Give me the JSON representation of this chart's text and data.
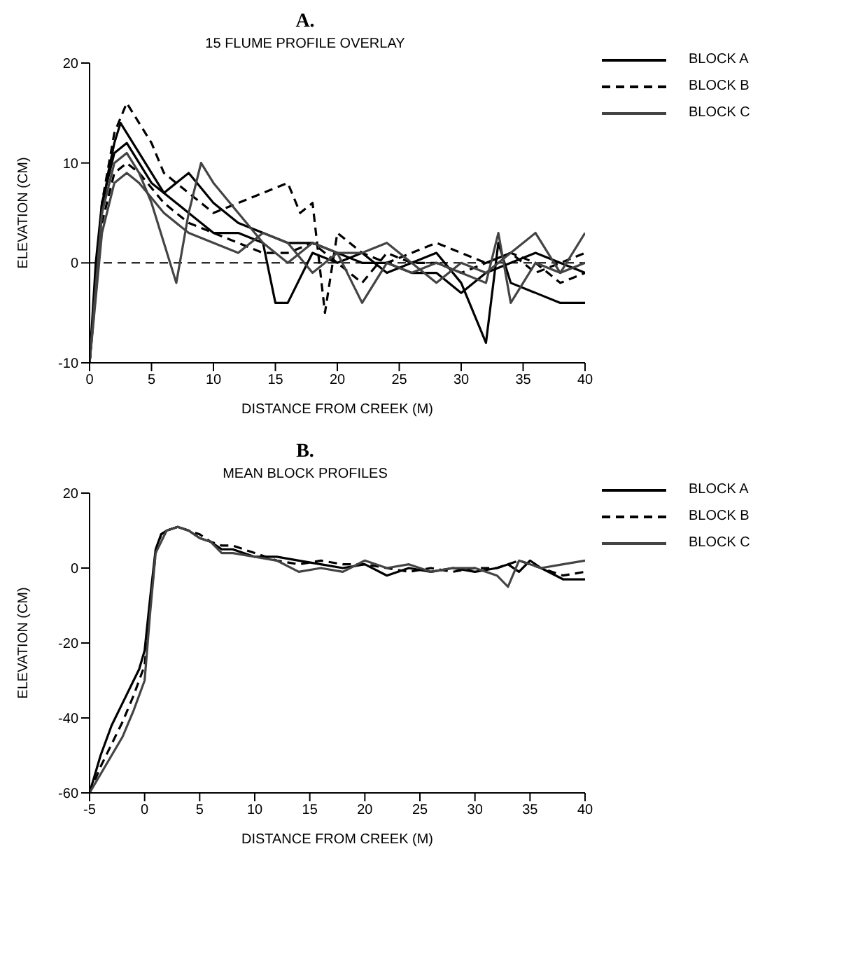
{
  "chart_data": [
    {
      "type": "line",
      "title": "A.",
      "subtitle": "15 FLUME PROFILE OVERLAY",
      "xlabel": "DISTANCE FROM CREEK (M)",
      "ylabel": "ELEVATION (CM)",
      "xlim": [
        0,
        40
      ],
      "xticks": [
        0,
        5,
        10,
        15,
        20,
        25,
        30,
        35,
        40
      ],
      "ylim": [
        -10,
        20
      ],
      "yticks": [
        -10,
        0,
        10,
        20
      ],
      "grid": false,
      "legend": "right",
      "marker": "none",
      "ref_lines": [
        {
          "axis": "y",
          "value": 0,
          "line_style": "dashed",
          "color": "#000000"
        }
      ],
      "series": [
        {
          "name": "BLOCK A",
          "color": "#000000",
          "line_style": "solid",
          "x": [
            0,
            0.5,
            1,
            1.5,
            2,
            2.5,
            3,
            4,
            5,
            6,
            7,
            8,
            9,
            10,
            12,
            14,
            15,
            16,
            18,
            20,
            22,
            24,
            26,
            28,
            30,
            32,
            33,
            34,
            36,
            38,
            40
          ],
          "values": [
            -10,
            -2,
            5,
            9,
            12,
            14,
            13,
            11,
            9,
            7,
            6,
            5,
            4,
            3,
            3,
            2,
            -4,
            -4,
            1,
            0,
            1,
            -1,
            0,
            1,
            -2,
            -8,
            2,
            -2,
            -3,
            -4,
            -4
          ]
        },
        {
          "color": "#000000",
          "line_style": "solid",
          "x": [
            0,
            0.5,
            1,
            2,
            3,
            4,
            5,
            6,
            8,
            10,
            12,
            14,
            16,
            18,
            20,
            22,
            24,
            26,
            28,
            30,
            32,
            34,
            36,
            38,
            40
          ],
          "values": [
            -10,
            0,
            6,
            11,
            12,
            10,
            8,
            7,
            9,
            6,
            4,
            3,
            2,
            2,
            1,
            0,
            0,
            -1,
            -1,
            -3,
            -1,
            0,
            1,
            0,
            -1
          ]
        },
        {
          "name": "BLOCK B",
          "color": "#000000",
          "line_style": "dashed",
          "x": [
            0,
            1,
            2,
            3,
            4,
            5,
            6,
            7,
            8,
            10,
            12,
            14,
            16,
            17,
            18,
            19,
            20,
            22,
            24,
            26,
            28,
            30,
            32,
            34,
            36,
            38,
            40
          ],
          "values": [
            -10,
            6,
            13,
            16,
            14,
            12,
            9,
            8,
            7,
            5,
            6,
            7,
            8,
            5,
            6,
            -5,
            3,
            1,
            0,
            1,
            2,
            1,
            0,
            1,
            -1,
            0,
            1
          ]
        },
        {
          "color": "#000000",
          "line_style": "dashed",
          "x": [
            0,
            1,
            2,
            3,
            4,
            6,
            8,
            10,
            12,
            14,
            16,
            18,
            20,
            22,
            24,
            26,
            28,
            30,
            32,
            34,
            36,
            38,
            40
          ],
          "values": [
            -10,
            4,
            9,
            10,
            9,
            6,
            4,
            3,
            2,
            1,
            1,
            2,
            0,
            -2,
            1,
            0,
            0,
            -1,
            0,
            1,
            0,
            -2,
            -1
          ]
        },
        {
          "name": "BLOCK C",
          "color": "#444444",
          "line_style": "solid",
          "x": [
            0,
            1,
            2,
            3,
            4,
            5,
            6,
            7,
            8,
            9,
            10,
            12,
            14,
            16,
            18,
            20,
            22,
            24,
            26,
            28,
            30,
            32,
            33,
            34,
            36,
            38,
            40
          ],
          "values": [
            -10,
            5,
            10,
            11,
            9,
            6,
            2,
            -2,
            5,
            10,
            8,
            5,
            2,
            0,
            2,
            1,
            -4,
            0,
            -1,
            0,
            -1,
            -2,
            3,
            -4,
            0,
            -1,
            3
          ]
        },
        {
          "color": "#444444",
          "line_style": "solid",
          "x": [
            0,
            1,
            2,
            3,
            4,
            6,
            8,
            10,
            12,
            14,
            16,
            18,
            20,
            22,
            24,
            26,
            28,
            30,
            32,
            34,
            36,
            38,
            40
          ],
          "values": [
            -10,
            3,
            8,
            9,
            8,
            5,
            3,
            2,
            1,
            3,
            2,
            -1,
            1,
            1,
            2,
            0,
            -2,
            0,
            -1,
            1,
            3,
            -1,
            0
          ]
        }
      ]
    },
    {
      "type": "line",
      "title": "B.",
      "subtitle": "MEAN BLOCK PROFILES",
      "xlabel": "DISTANCE FROM CREEK (M)",
      "ylabel": "ELEVATION (CM)",
      "xlim": [
        -5,
        40
      ],
      "xticks": [
        -5,
        0,
        5,
        10,
        15,
        20,
        25,
        30,
        35,
        40
      ],
      "ylim": [
        -60,
        20
      ],
      "yticks": [
        -60,
        -40,
        -20,
        0,
        20
      ],
      "grid": false,
      "legend": "right",
      "marker": "none",
      "series": [
        {
          "name": "BLOCK A",
          "color": "#000000",
          "line_style": "solid",
          "x": [
            -5,
            -4,
            -3,
            -2,
            -1,
            -0.5,
            0,
            0.5,
            1,
            1.5,
            2,
            3,
            4,
            5,
            6,
            7,
            8,
            10,
            12,
            14,
            16,
            18,
            20,
            22,
            24,
            26,
            28,
            30,
            32,
            33,
            34,
            35,
            36,
            38,
            40
          ],
          "values": [
            -60,
            -50,
            -42,
            -36,
            -30,
            -27,
            -22,
            -8,
            5,
            9,
            10,
            11,
            10,
            8,
            7,
            5,
            5,
            3,
            3,
            2,
            1,
            0,
            1,
            -2,
            0,
            -1,
            0,
            -1,
            0,
            1,
            -1,
            2,
            0,
            -3,
            -3
          ]
        },
        {
          "name": "BLOCK B",
          "color": "#000000",
          "line_style": "dashed",
          "x": [
            -5,
            -4,
            -3,
            -2,
            -1,
            0,
            0.5,
            1,
            1.5,
            2,
            3,
            4,
            5,
            6,
            7,
            8,
            10,
            12,
            14,
            16,
            18,
            20,
            22,
            24,
            26,
            28,
            30,
            32,
            34,
            36,
            38,
            40
          ],
          "values": [
            -60,
            -53,
            -47,
            -41,
            -34,
            -26,
            -10,
            4,
            9,
            10,
            11,
            10,
            9,
            7,
            6,
            6,
            4,
            2,
            1,
            2,
            1,
            1,
            0,
            -1,
            0,
            -1,
            0,
            0,
            2,
            0,
            -2,
            -1
          ]
        },
        {
          "name": "BLOCK C",
          "color": "#444444",
          "line_style": "solid",
          "x": [
            -5,
            -4,
            -3,
            -2,
            -1,
            0,
            0.5,
            1,
            2,
            3,
            4,
            5,
            6,
            7,
            8,
            10,
            12,
            14,
            16,
            18,
            20,
            22,
            24,
            26,
            28,
            30,
            32,
            33,
            34,
            36,
            38,
            40
          ],
          "values": [
            -60,
            -55,
            -50,
            -45,
            -38,
            -30,
            -12,
            4,
            10,
            11,
            10,
            8,
            7,
            4,
            4,
            3,
            2,
            -1,
            0,
            -1,
            2,
            0,
            1,
            -1,
            0,
            0,
            -2,
            -5,
            2,
            0,
            1,
            2
          ]
        }
      ]
    }
  ]
}
